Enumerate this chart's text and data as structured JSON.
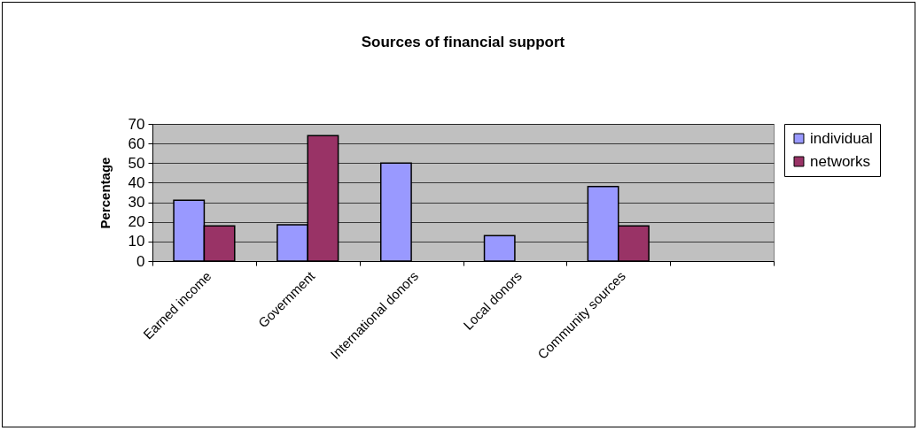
{
  "chart_data": {
    "type": "bar",
    "title": "Sources of financial support",
    "ylabel": "Percentage",
    "categories": [
      "Earned income",
      "Government",
      "International donors",
      "Local donors",
      "Community sources",
      null
    ],
    "series": [
      {
        "name": "individual",
        "color": "#9999ff",
        "values": [
          31,
          18.5,
          50,
          13,
          38,
          null
        ]
      },
      {
        "name": "networks",
        "color": "#993366",
        "values": [
          18,
          64,
          null,
          null,
          18,
          null
        ]
      }
    ],
    "ylim": [
      0,
      70
    ],
    "yticks": [
      0,
      10,
      20,
      30,
      40,
      50,
      60,
      70
    ],
    "grid": "y",
    "legend": "right"
  }
}
